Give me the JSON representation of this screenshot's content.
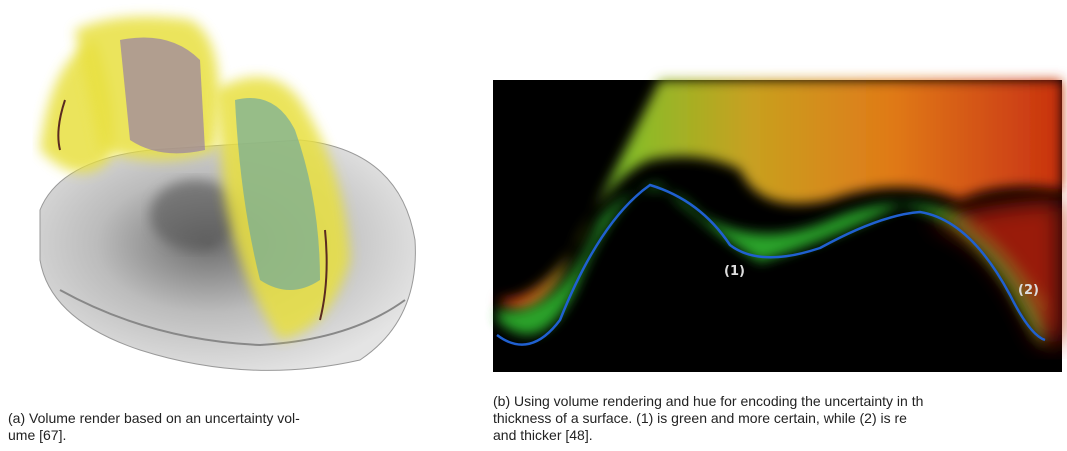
{
  "figure": {
    "a": {
      "caption_lines": [
        "(a) Volume render based on an uncertainty vol-",
        "ume [67]."
      ]
    },
    "b": {
      "labels": [
        "(1)",
        "(2)"
      ],
      "caption_lines": [
        "(b) Using volume rendering and hue for encoding the uncertainty in th",
        "thickness of a surface.  (1) is green and more certain, while (2) is re",
        "and thicker [48]."
      ]
    }
  }
}
